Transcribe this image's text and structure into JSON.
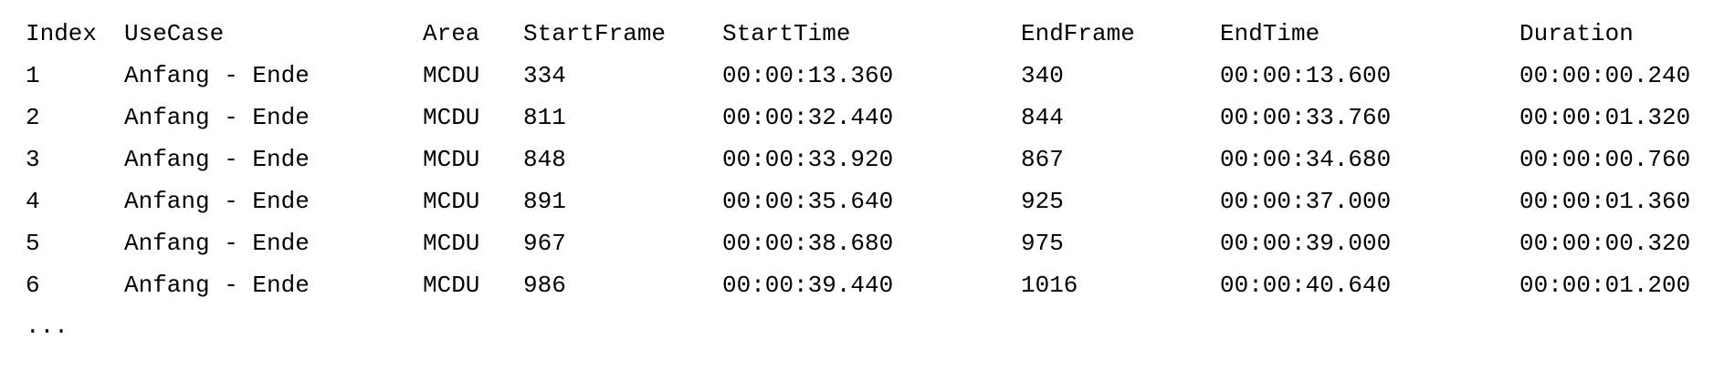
{
  "table": {
    "headers": [
      "Index",
      "UseCase",
      "Area",
      "StartFrame",
      "StartTime",
      "EndFrame",
      "EndTime",
      "Duration"
    ],
    "rows": [
      [
        "1",
        "Anfang - Ende",
        "MCDU",
        "334",
        "00:00:13.360",
        "340",
        "00:00:13.600",
        "00:00:00.240"
      ],
      [
        "2",
        "Anfang - Ende",
        "MCDU",
        "811",
        "00:00:32.440",
        "844",
        "00:00:33.760",
        "00:00:01.320"
      ],
      [
        "3",
        "Anfang - Ende",
        "MCDU",
        "848",
        "00:00:33.920",
        "867",
        "00:00:34.680",
        "00:00:00.760"
      ],
      [
        "4",
        "Anfang - Ende",
        "MCDU",
        "891",
        "00:00:35.640",
        "925",
        "00:00:37.000",
        "00:00:01.360"
      ],
      [
        "5",
        "Anfang - Ende",
        "MCDU",
        "967",
        "00:00:38.680",
        "975",
        "00:00:39.000",
        "00:00:00.320"
      ],
      [
        "6",
        "Anfang - Ende",
        "MCDU",
        "986",
        "00:00:39.440",
        "1016",
        "00:00:40.640",
        "00:00:01.200"
      ]
    ],
    "continuation": "..."
  }
}
